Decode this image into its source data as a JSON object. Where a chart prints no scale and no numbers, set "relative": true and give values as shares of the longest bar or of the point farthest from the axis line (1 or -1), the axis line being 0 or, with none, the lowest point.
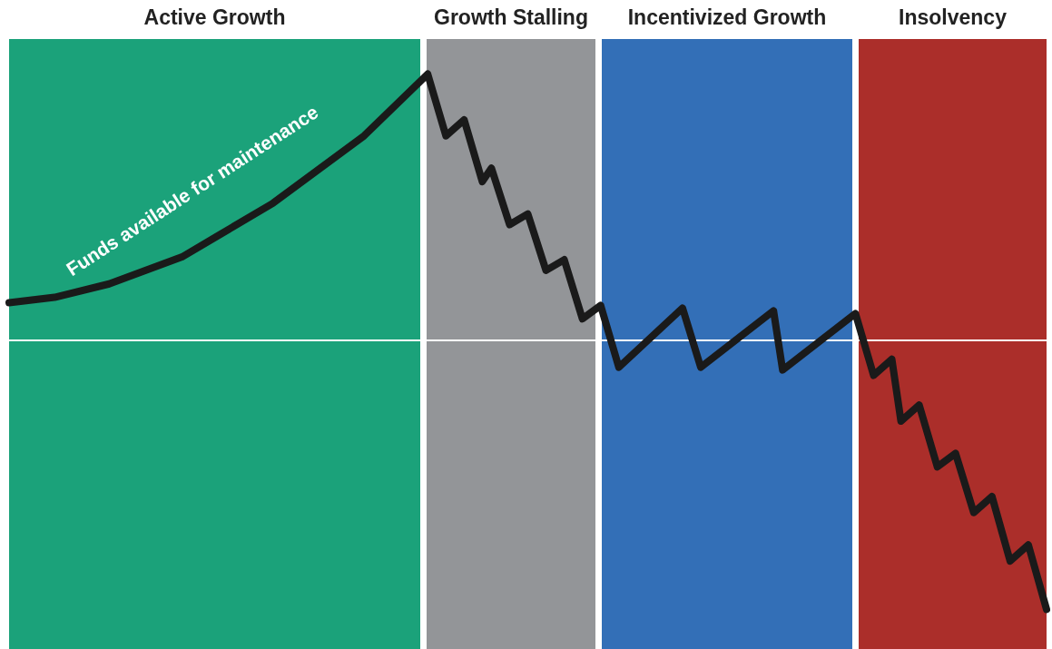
{
  "chart_data": {
    "type": "line",
    "relative": true,
    "grid": false,
    "line_style": "solid",
    "categories": [
      null,
      null,
      null,
      null,
      null,
      null,
      null,
      null,
      null,
      null,
      null,
      null,
      null,
      null,
      null,
      null,
      null,
      null,
      null,
      null,
      null,
      null,
      null,
      null,
      null,
      null,
      null,
      null,
      null,
      null,
      null,
      null,
      null,
      null,
      null,
      null,
      null,
      null,
      null,
      null,
      null,
      null,
      null,
      null,
      null,
      null,
      null,
      null,
      null,
      null,
      null,
      null,
      null,
      null,
      null,
      null,
      null,
      null,
      null,
      null,
      null,
      null,
      null,
      null,
      null,
      null,
      null,
      null,
      null,
      null,
      null,
      null,
      null,
      null,
      null,
      null,
      null,
      null,
      null,
      null,
      null,
      null,
      null,
      null,
      null,
      null,
      null,
      null,
      null,
      null,
      null,
      null,
      null,
      null,
      null,
      null,
      null,
      null,
      null,
      null,
      null,
      null,
      null,
      null,
      null,
      null,
      null,
      null,
      null,
      null,
      null,
      null,
      null,
      null,
      null
    ],
    "series": [
      {
        "color": "#1a1a1a",
        "values": [
          0.14,
          null,
          null,
          null,
          null,
          0.16,
          null,
          null,
          null,
          null,
          null,
          0.21,
          null,
          null,
          null,
          null,
          null,
          null,
          null,
          0.31,
          null,
          null,
          null,
          null,
          null,
          null,
          null,
          null,
          null,
          0.51,
          null,
          null,
          null,
          null,
          null,
          null,
          null,
          null,
          null,
          0.76,
          null,
          null,
          null,
          null,
          null,
          null,
          0.99,
          null,
          0.76,
          null,
          0.82,
          null,
          0.59,
          0.64,
          null,
          0.43,
          null,
          0.47,
          null,
          0.26,
          null,
          0.3,
          null,
          0.08,
          null,
          0.13,
          null,
          -0.1,
          null,
          null,
          null,
          null,
          null,
          null,
          0.12,
          null,
          -0.1,
          null,
          null,
          null,
          null,
          null,
          null,
          null,
          0.11,
          -0.11,
          null,
          null,
          null,
          null,
          null,
          null,
          null,
          0.1,
          null,
          -0.13,
          null,
          -0.07,
          -0.3,
          null,
          -0.24,
          null,
          -0.47,
          null,
          -0.42,
          null,
          -0.64,
          null,
          -0.58,
          null,
          -0.82,
          null,
          -0.76,
          null,
          -1.0
        ]
      }
    ],
    "annotations": [
      "Active Growth",
      "Growth Stalling",
      "Incentivized Growth",
      "Insolvency",
      "Funds available for maintenance"
    ]
  }
}
